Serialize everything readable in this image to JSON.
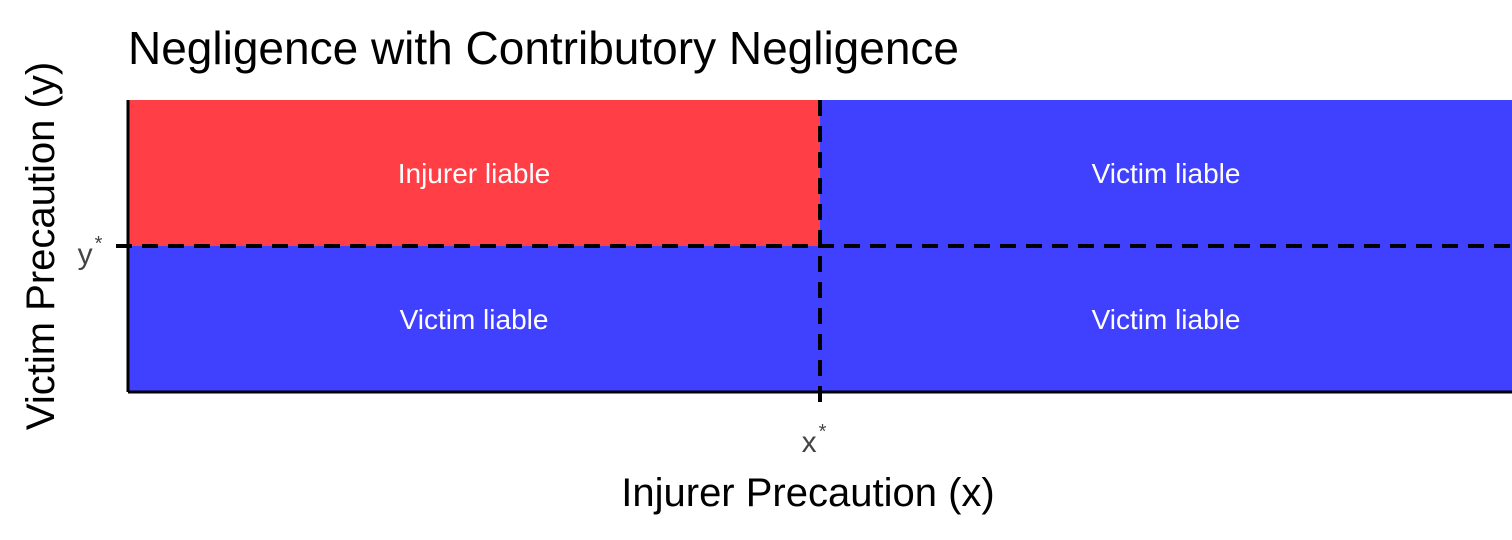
{
  "chart_data": {
    "type": "heatmap",
    "title": "Negligence with Contributory Negligence",
    "xlabel": "Injurer Precaution (x)",
    "ylabel": "Victim Precaution (y)",
    "x_ticks": [
      {
        "value": 0.5,
        "label": "x",
        "sup": "*"
      }
    ],
    "y_ticks": [
      {
        "value": 0.5,
        "label": "y",
        "sup": "*"
      }
    ],
    "xlim": [
      0,
      1
    ],
    "ylim": [
      0,
      1
    ],
    "grid": false,
    "regions": [
      {
        "x": [
          0,
          0.5
        ],
        "y": [
          0.5,
          1
        ],
        "label": "Injurer liable",
        "color": "#ff3e45"
      },
      {
        "x": [
          0.5,
          1
        ],
        "y": [
          0.5,
          1
        ],
        "label": "Victim liable",
        "color": "#4040ff"
      },
      {
        "x": [
          0,
          0.5
        ],
        "y": [
          0,
          0.5
        ],
        "label": "Victim liable",
        "color": "#4040ff"
      },
      {
        "x": [
          0.5,
          1
        ],
        "y": [
          0,
          0.5
        ],
        "label": "Victim liable",
        "color": "#4040ff"
      }
    ],
    "reference_lines": [
      {
        "axis": "x",
        "value": 0.5,
        "style": "dashed"
      },
      {
        "axis": "y",
        "value": 0.5,
        "style": "dashed"
      }
    ]
  }
}
